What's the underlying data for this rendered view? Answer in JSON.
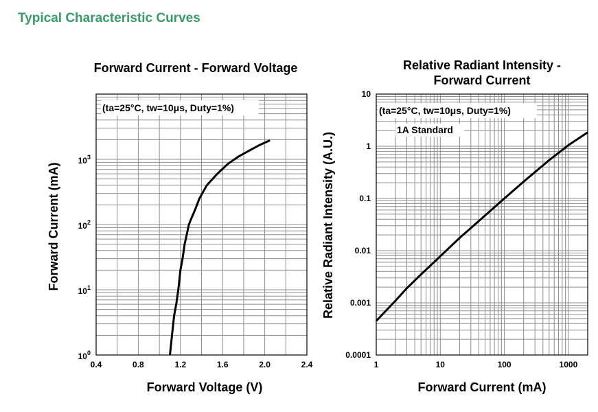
{
  "page": {
    "section_title": "Typical Characteristic Curves"
  },
  "chart_data": [
    {
      "type": "line",
      "title": "Forward Current - Forward Voltage",
      "xlabel": "Forward Voltage (V)",
      "ylabel": "Forward Current (mA)",
      "xscale": "linear",
      "yscale": "log",
      "xlim": [
        0.4,
        2.4
      ],
      "ylim": [
        1,
        10000
      ],
      "x_ticks": [
        "0.4",
        "0.8",
        "1.2",
        "1.6",
        "2.0",
        "2.4"
      ],
      "y_ticks": [
        {
          "base": "10",
          "exp": "0"
        },
        {
          "base": "10",
          "exp": "1"
        },
        {
          "base": "10",
          "exp": "2"
        },
        {
          "base": "10",
          "exp": "3"
        }
      ],
      "grid": true,
      "annotation": "(ta=25°C, tw=10μs, Duty=1%)",
      "series": [
        {
          "x": [
            1.1,
            1.12,
            1.14,
            1.16,
            1.18,
            1.2,
            1.22,
            1.24,
            1.26,
            1.28,
            1.3,
            1.34,
            1.38,
            1.45,
            1.55,
            1.65,
            1.75,
            1.85,
            1.95,
            2.05
          ],
          "y": [
            1,
            2,
            4,
            6,
            10,
            20,
            30,
            50,
            70,
            100,
            120,
            170,
            250,
            400,
            600,
            850,
            1100,
            1350,
            1650,
            1950
          ]
        }
      ]
    },
    {
      "type": "line",
      "title": "Relative Radiant Intensity - Forward Current",
      "title_lines": [
        "Relative Radiant Intensity -",
        "Forward Current"
      ],
      "xlabel": "Forward Current (mA)",
      "ylabel": "Relative Radiant Intensity (A.U.)",
      "xscale": "log",
      "yscale": "log",
      "xlim": [
        1,
        2000
      ],
      "ylim": [
        0.0001,
        10
      ],
      "x_ticks": [
        "1",
        "10",
        "100",
        "1000"
      ],
      "y_ticks": [
        "0.0001",
        "0.001",
        "0.01",
        "0.1",
        "1",
        "10"
      ],
      "grid": true,
      "annotation": "(ta=25°C, tw=10μs, Duty=1%)",
      "annotation2": "1A Standard",
      "series": [
        {
          "x": [
            1,
            2,
            3,
            5,
            10,
            20,
            50,
            100,
            200,
            500,
            1000,
            2000
          ],
          "y": [
            0.00045,
            0.0011,
            0.0019,
            0.0035,
            0.0078,
            0.0175,
            0.047,
            0.1,
            0.21,
            0.54,
            1.05,
            1.85
          ]
        }
      ]
    }
  ]
}
